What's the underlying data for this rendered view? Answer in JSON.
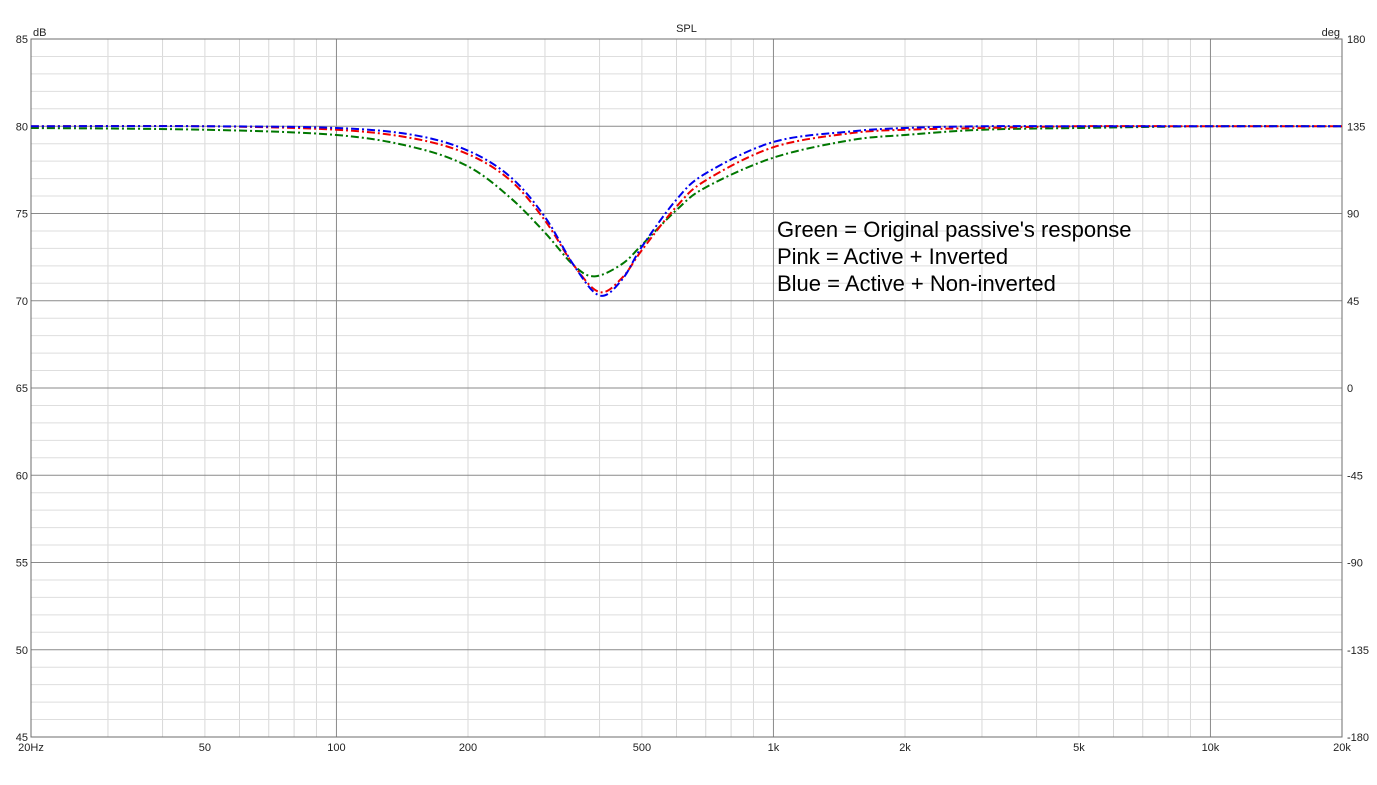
{
  "chart_data": {
    "type": "line",
    "title": "SPL",
    "y_unit_left": "dB",
    "y_unit_right": "deg",
    "x_scale": "log",
    "xlim": [
      20,
      20000
    ],
    "ylim": [
      45,
      85
    ],
    "ylim_right": [
      -180,
      180
    ],
    "grid": true,
    "x_ticks": [
      {
        "value": 20,
        "label": "20Hz"
      },
      {
        "value": 50,
        "label": "50"
      },
      {
        "value": 100,
        "label": "100"
      },
      {
        "value": 200,
        "label": "200"
      },
      {
        "value": 500,
        "label": "500"
      },
      {
        "value": 1000,
        "label": "1k"
      },
      {
        "value": 2000,
        "label": "2k"
      },
      {
        "value": 5000,
        "label": "5k"
      },
      {
        "value": 10000,
        "label": "10k"
      },
      {
        "value": 20000,
        "label": "20k"
      }
    ],
    "y_ticks_left": [
      "45",
      "50",
      "55",
      "60",
      "65",
      "70",
      "75",
      "80",
      "85"
    ],
    "y_ticks_right": [
      "-180",
      "-135",
      "-90",
      "-45",
      "0",
      "45",
      "90",
      "135",
      "180"
    ],
    "annotations": [
      "Green = Original passive's response",
      "Pink = Active + Inverted",
      "Blue = Active + Non-inverted"
    ],
    "series": [
      {
        "color": "#007700",
        "x": [
          20,
          50,
          100,
          150,
          200,
          250,
          300,
          350,
          390,
          450,
          500,
          600,
          700,
          1000,
          1500,
          2000,
          3000,
          5000,
          10000,
          20000
        ],
        "y": [
          79.9,
          79.8,
          79.5,
          78.8,
          77.7,
          75.9,
          73.9,
          72.0,
          71.4,
          72.1,
          73.2,
          75.2,
          76.5,
          78.2,
          79.2,
          79.5,
          79.8,
          79.9,
          80.0,
          80.0
        ]
      },
      {
        "color": "#ee0000",
        "x": [
          20,
          50,
          100,
          150,
          200,
          250,
          300,
          350,
          400,
          450,
          500,
          600,
          700,
          1000,
          1500,
          2000,
          3000,
          5000,
          10000,
          20000
        ],
        "y": [
          80.0,
          80.0,
          79.8,
          79.3,
          78.4,
          76.9,
          74.6,
          72.0,
          70.5,
          71.3,
          72.9,
          75.4,
          76.9,
          78.8,
          79.6,
          79.8,
          79.9,
          80.0,
          80.0,
          80.0
        ]
      },
      {
        "color": "#0000ee",
        "x": [
          20,
          50,
          100,
          150,
          200,
          250,
          300,
          350,
          400,
          450,
          500,
          600,
          700,
          1000,
          1500,
          2000,
          3000,
          5000,
          10000,
          20000
        ],
        "y": [
          80.0,
          80.0,
          79.9,
          79.5,
          78.6,
          77.1,
          74.8,
          72.0,
          70.3,
          71.2,
          73.1,
          75.8,
          77.3,
          79.1,
          79.7,
          79.9,
          80.0,
          80.0,
          80.0,
          80.0
        ]
      }
    ]
  }
}
